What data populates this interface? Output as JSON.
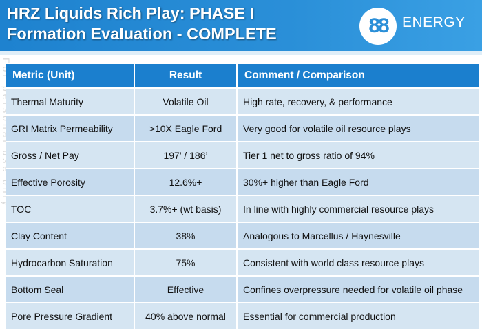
{
  "header": {
    "title_line1": "HRZ Liquids Rich Play: PHASE I",
    "title_line2": "Formation Evaluation - COMPLETE",
    "logo_mark": "88",
    "logo_text": "ENERGY",
    "accent_color": "#1e82cf"
  },
  "watermark": "For personal use only",
  "table": {
    "headers": [
      "Metric (Unit)",
      "Result",
      "Comment / Comparison"
    ],
    "rows": [
      [
        "Thermal Maturity",
        "Volatile Oil",
        "High rate, recovery, & performance"
      ],
      [
        "GRI Matrix Permeability",
        ">10X Eagle Ford",
        "Very good for volatile oil resource plays"
      ],
      [
        "Gross / Net Pay",
        "197’ / 186’",
        "Tier 1 net to gross ratio of 94%"
      ],
      [
        "Effective Porosity",
        "12.6%+",
        "30%+ higher than Eagle Ford"
      ],
      [
        "TOC",
        "3.7%+ (wt basis)",
        "In line with highly commercial resource plays"
      ],
      [
        "Clay Content",
        "38%",
        "Analogous to Marcellus / Haynesville"
      ],
      [
        "Hydrocarbon Saturation",
        "75%",
        "Consistent with world class resource plays"
      ],
      [
        "Bottom Seal",
        "Effective",
        "Confines overpressure needed for volatile oil phase"
      ],
      [
        "Pore Pressure Gradient",
        "40% above normal",
        "Essential for commercial production"
      ]
    ]
  }
}
